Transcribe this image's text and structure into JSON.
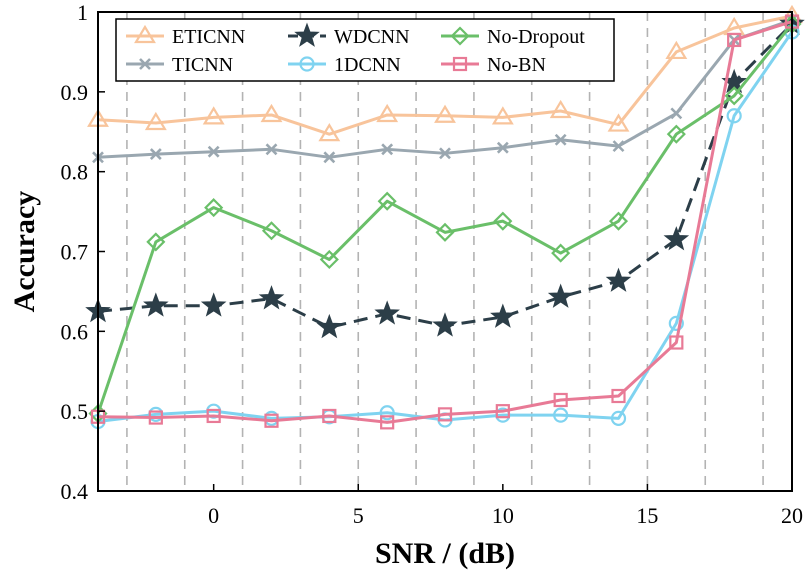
{
  "chart_data": {
    "type": "line",
    "title": "",
    "xlabel": "SNR / (dB)",
    "ylabel": "Accuracy",
    "xlim": [
      -4,
      20
    ],
    "ylim": [
      0.4,
      1.0
    ],
    "xticks": [
      0,
      5,
      10,
      15,
      20
    ],
    "yticks": [
      0.4,
      0.5,
      0.6,
      0.7,
      0.8,
      0.9,
      1.0
    ],
    "xtick_labels": [
      "0",
      "5",
      "10",
      "15",
      "20"
    ],
    "ytick_labels": [
      "0.4",
      "0.5",
      "0.6",
      "0.7",
      "0.8",
      "0.9",
      "1"
    ],
    "vertical_gridlines": [
      -3,
      -1,
      1,
      3,
      5,
      7,
      9,
      11,
      13,
      15,
      17,
      19,
      20
    ],
    "legend_position": "top-left",
    "x": [
      -4,
      -2,
      0,
      2,
      4,
      6,
      8,
      10,
      12,
      14,
      16,
      18,
      20
    ],
    "series": [
      {
        "name": "ETICNN",
        "color": "#f8c49b",
        "marker": "triangle",
        "dash": "solid",
        "values": [
          0.865,
          0.861,
          0.868,
          0.871,
          0.847,
          0.871,
          0.87,
          0.868,
          0.876,
          0.859,
          0.95,
          0.98,
          0.995
        ]
      },
      {
        "name": "TICNN",
        "color": "#9aa7b0",
        "marker": "x",
        "dash": "solid",
        "values": [
          0.818,
          0.822,
          0.825,
          0.828,
          0.818,
          0.828,
          0.823,
          0.83,
          0.84,
          0.832,
          0.873,
          0.965,
          0.99
        ]
      },
      {
        "name": "WDCNN",
        "color": "#2c3e48",
        "marker": "star",
        "dash": "dashed",
        "values": [
          0.625,
          0.632,
          0.632,
          0.641,
          0.605,
          0.622,
          0.607,
          0.618,
          0.643,
          0.663,
          0.715,
          0.912,
          0.985
        ]
      },
      {
        "name": "1DCNN",
        "color": "#7fd3f0",
        "marker": "circle",
        "dash": "solid",
        "values": [
          0.487,
          0.496,
          0.5,
          0.491,
          0.493,
          0.498,
          0.489,
          0.495,
          0.495,
          0.491,
          0.61,
          0.87,
          0.975
        ]
      },
      {
        "name": "No-Dropout",
        "color": "#6abf69",
        "marker": "diamond",
        "dash": "solid",
        "values": [
          0.497,
          0.712,
          0.755,
          0.726,
          0.69,
          0.763,
          0.724,
          0.738,
          0.698,
          0.738,
          0.847,
          0.895,
          0.985
        ]
      },
      {
        "name": "No-BN",
        "color": "#e87a96",
        "marker": "square",
        "dash": "solid",
        "values": [
          0.493,
          0.492,
          0.494,
          0.488,
          0.494,
          0.486,
          0.496,
          0.5,
          0.514,
          0.519,
          0.586,
          0.965,
          0.988
        ]
      }
    ],
    "legend_order": [
      "ETICNN",
      "WDCNN",
      "No-Dropout",
      "TICNN",
      "1DCNN",
      "No-BN"
    ]
  }
}
